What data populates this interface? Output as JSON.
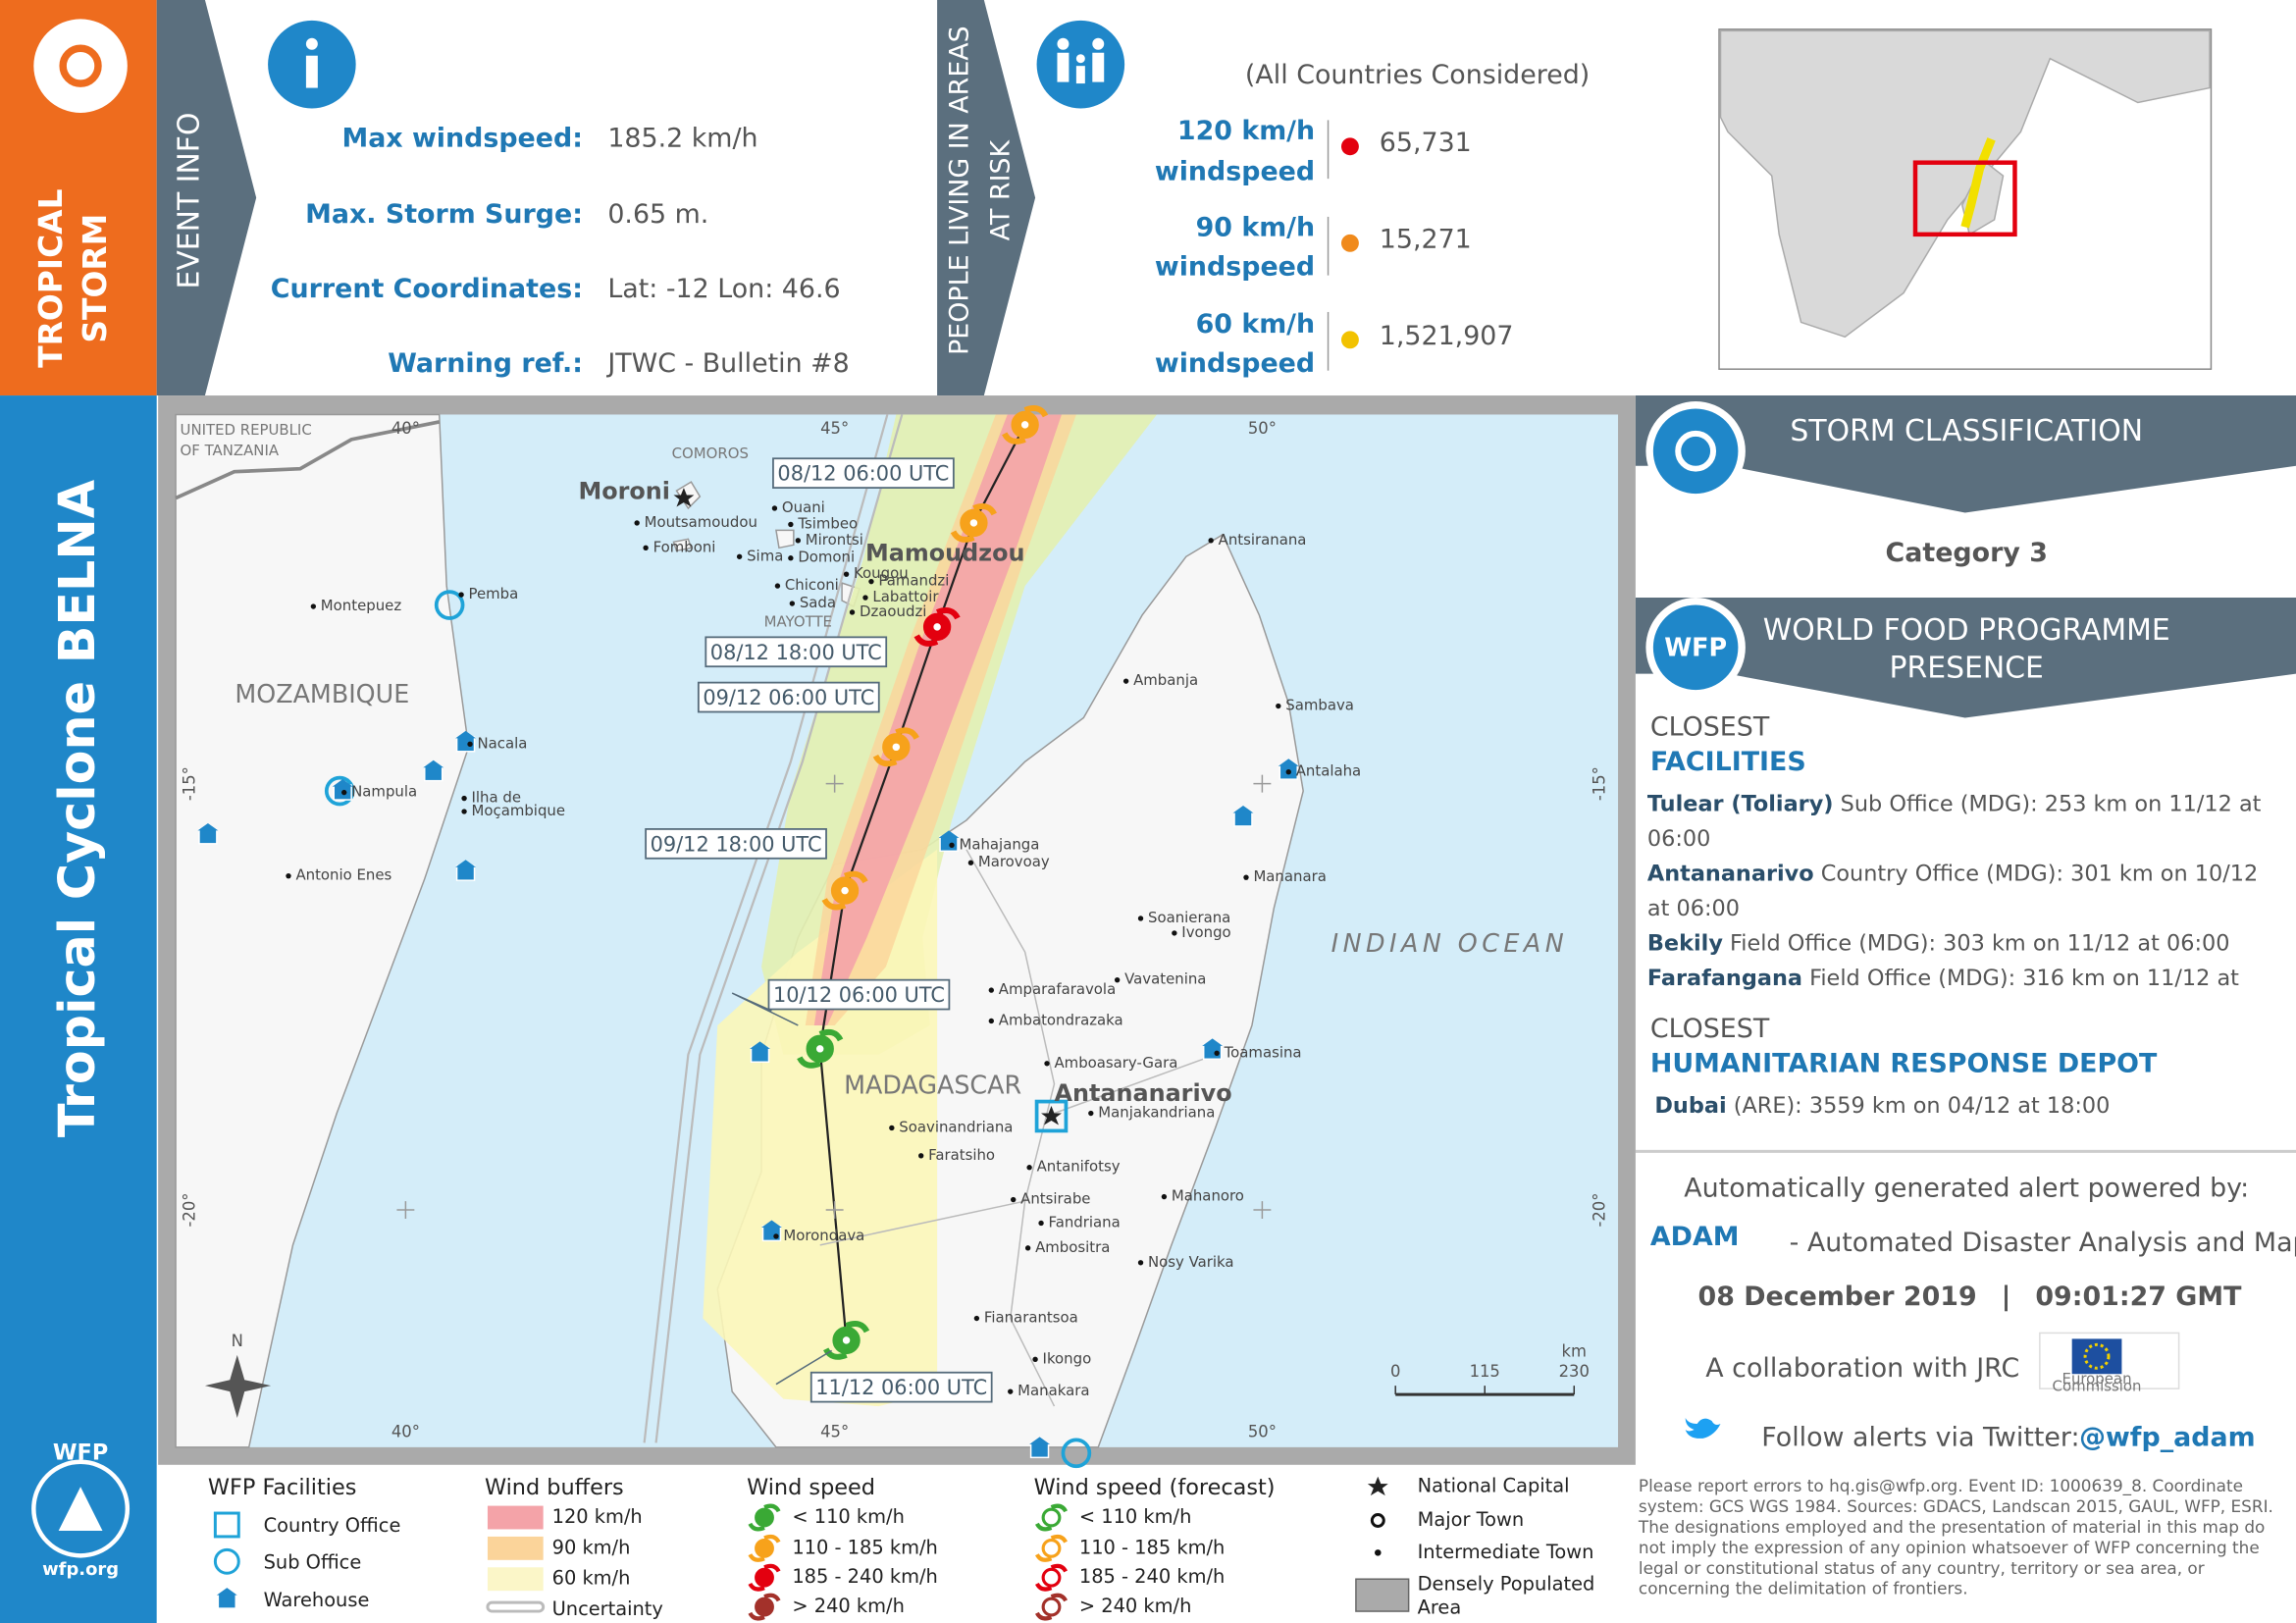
{
  "sidebar": {
    "event_type": [
      "TROPICAL",
      "STORM"
    ],
    "title": "Tropical Cyclone BELNA",
    "logo": "WFP",
    "site": "wfp.org"
  },
  "event_info": {
    "heading": "EVENT INFO",
    "rows": [
      {
        "label": "Max windspeed:",
        "value": "185.2 km/h"
      },
      {
        "label": "Max. Storm Surge:",
        "value": "0.65 m."
      },
      {
        "label": "Current Coordinates:",
        "value": "Lat: -12 Lon: 46.6"
      },
      {
        "label": "Warning ref.:",
        "value": "JTWC - Bulletin #8"
      }
    ]
  },
  "population": {
    "heading": [
      "PEOPLE LIVING IN AREAS",
      "AT RISK"
    ],
    "note": "(All Countries Considered)",
    "rows": [
      {
        "speed": "120 km/h",
        "unit": "windspeed",
        "count": "65,731",
        "color": "#e3000f"
      },
      {
        "speed": "90 km/h",
        "unit": "windspeed",
        "count": "15,271",
        "color": "#f08a1c"
      },
      {
        "speed": "60 km/h",
        "unit": "windspeed",
        "count": "1,521,907",
        "color": "#f2c200"
      }
    ]
  },
  "classification": {
    "heading": "STORM CLASSIFICATION",
    "category": "Category 3"
  },
  "wfp_presence": {
    "logo": "WFP",
    "heading": [
      "WORLD FOOD PROGRAMME",
      "PRESENCE"
    ],
    "facilities_heading": [
      "CLOSEST",
      "FACILITIES"
    ],
    "facilities": [
      {
        "bold": "Tulear (Toliary)",
        "text": " Sub Office (MDG): 253 km on 11/12 at"
      },
      {
        "text": "06:00"
      },
      {
        "bold": "Antananarivo",
        "text": " Country Office (MDG): 301 km on 10/12"
      },
      {
        "text": "at 06:00"
      },
      {
        "bold": "Bekily",
        "text": " Field Office (MDG): 303 km on 11/12 at 06:00"
      },
      {
        "bold": "Farafangana",
        "text": " Field Office (MDG): 316 km on 11/12 at"
      }
    ],
    "depot_heading": [
      "CLOSEST",
      "HUMANITARIAN RESPONSE DEPOT"
    ],
    "depots": [
      {
        "bold": "Dubai",
        "text": " (ARE): 3559 km on 04/12 at 18:00"
      }
    ]
  },
  "credits": {
    "powered": "Automatically generated alert powered by:",
    "adam": "ADAM",
    "adam_full": "- Automated Disaster Analysis and Mapping",
    "date": "08 December 2019",
    "separator": "|",
    "time": "09:01:27 GMT",
    "collaboration": "A collaboration with JRC",
    "eu": [
      "European",
      "Commission"
    ],
    "twitter_text": "Follow alerts via Twitter:",
    "twitter_handle": "@wfp_adam"
  },
  "disclaimer": [
    "Please report errors to hq.gis@wfp.org. Event ID: 1000639_8. Coordinate",
    "system: GCS WGS 1984. Sources: GDACS, Landscan 2015, GAUL, WFP, ESRI.",
    "The designations employed and the presentation of material in this map do",
    "not imply the expression of any opinion whatsoever of WFP concerning the",
    "legal or constitutional status of any country, territory or sea area, or",
    "concerning the delimitation of frontiers."
  ],
  "legend": {
    "facilities": {
      "title": "WFP Facilities",
      "items": [
        "Country Office",
        "Sub Office",
        "Warehouse"
      ]
    },
    "buffers": {
      "title": "Wind buffers",
      "items": [
        {
          "label": "120 km/h",
          "color": "#f4a3a8"
        },
        {
          "label": "90 km/h",
          "color": "#fbd49a"
        },
        {
          "label": "60 km/h",
          "color": "#fbf6c8"
        }
      ],
      "uncertainty": "Uncertainty"
    },
    "wind": {
      "title": "Wind speed",
      "items": [
        {
          "label": "< 110 km/h",
          "color": "#3aa935"
        },
        {
          "label": "110 - 185 km/h",
          "color": "#f7a21b"
        },
        {
          "label": "185 - 240 km/h",
          "color": "#e3000f"
        },
        {
          "label": "> 240 km/h",
          "color": "#a3312a"
        }
      ]
    },
    "wind_forecast": {
      "title": "Wind speed (forecast)",
      "items": [
        {
          "label": "< 110 km/h",
          "color": "#3aa935"
        },
        {
          "label": "110 - 185 km/h",
          "color": "#f7a21b"
        },
        {
          "label": "185 - 240 km/h",
          "color": "#e3000f"
        },
        {
          "label": "> 240 km/h",
          "color": "#a3312a"
        }
      ]
    },
    "towns": [
      "National Capital",
      "Major Town",
      "Intermediate Town"
    ],
    "dense": [
      "Densely Populated",
      "Area"
    ]
  },
  "map": {
    "track_labels": [
      "08/12 06:00 UTC",
      "08/12 18:00 UTC",
      "09/12 06:00 UTC",
      "09/12 18:00 UTC",
      "10/12 06:00 UTC",
      "11/12 06:00 UTC"
    ],
    "regions": [
      "MOZAMBIQUE",
      "MADAGASCAR",
      "INDIAN OCEAN",
      "COMOROS",
      "MAYOTTE",
      "UNITED REPUBLIC",
      "OF TANZANIA"
    ],
    "grid_labels": [
      "40°",
      "45°",
      "50°",
      "40°",
      "45°",
      "50°",
      "-15°",
      "-20°",
      "-15°",
      "-20°"
    ],
    "places": [
      "Moroni",
      "Moutsamoudou",
      "Ouani",
      "Tsimbeo",
      "Mirontsi",
      "Fomboni",
      "Sima",
      "Domoni",
      "Mamoudzou",
      "Kougou",
      "Pamandzi",
      "Chiconi",
      "Labattoir",
      "Sada",
      "Dzaoudzi",
      "Pemba",
      "Montepuez",
      "Nacala",
      "Nampula",
      "Ilha de",
      "Moçambique",
      "Antonio Enes",
      "Antsiranana",
      "Ambanja",
      "Sambava",
      "Antalaha",
      "Mahajanga",
      "Marovoay",
      "Mananara",
      "Soanierana",
      "Ivongo",
      "Vavatenina",
      "Amparafaravola",
      "Ambatondrazaka",
      "Amboasary-Gara",
      "Toamasina",
      "Antananarivo",
      "Manjakandriana",
      "Soavinandriana",
      "Faratsiho",
      "Antanifotsy",
      "Antsirabe",
      "Fandriana",
      "Mahanoro",
      "Ambositra",
      "Nosy Varika",
      "Morondava",
      "Fianarantsoa",
      "Ikongo",
      "Manakara"
    ],
    "scale": {
      "unit": "km",
      "ticks": [
        0,
        115,
        230
      ]
    },
    "north": "N"
  }
}
